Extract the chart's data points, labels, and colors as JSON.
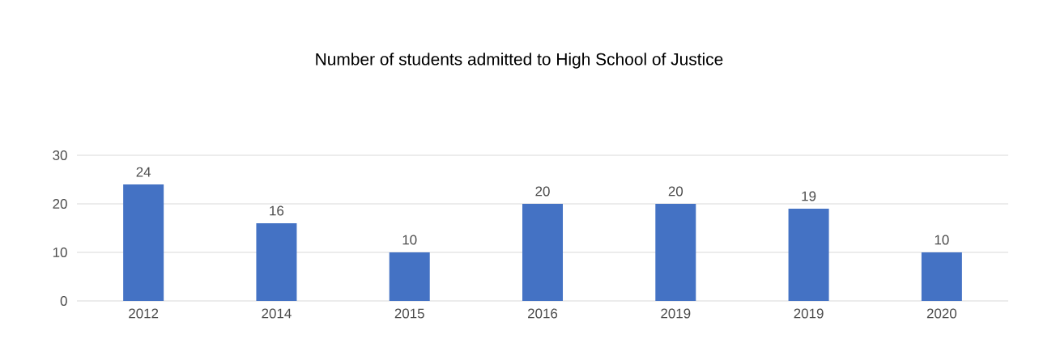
{
  "chart_data": {
    "type": "bar",
    "title": "Number of students admitted to High School of Justice",
    "categories": [
      "2012",
      "2014",
      "2015",
      "2016",
      "2019",
      "2019",
      "2020"
    ],
    "values": [
      24,
      16,
      10,
      20,
      20,
      19,
      10
    ],
    "color": "#4472c4",
    "ylim": [
      0,
      30
    ],
    "yticks": [
      0,
      10,
      20,
      30
    ],
    "grid": "y",
    "data_labels": true
  }
}
